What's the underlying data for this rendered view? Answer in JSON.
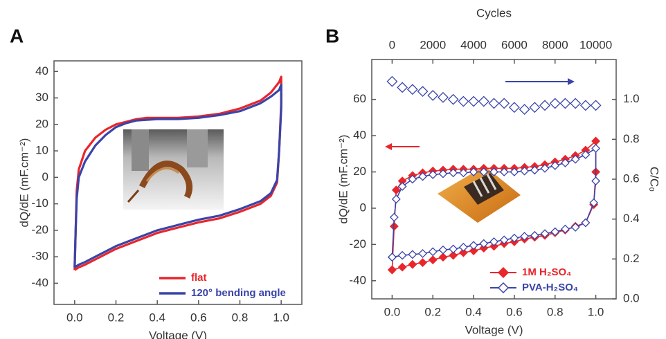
{
  "chart_data": [
    {
      "type": "line",
      "panel": "A",
      "x_label": "Voltage (V)",
      "y_label": "dQ/dE (mF.cm⁻²)",
      "xlim": [
        -0.1,
        1.1
      ],
      "ylim": [
        -48,
        44
      ],
      "xticks": [
        {
          "value": 0,
          "label": "0.0"
        },
        0.2,
        0.4,
        0.6,
        0.8,
        {
          "value": 1,
          "label": "1.0"
        }
      ],
      "yticks": [
        -40,
        -30,
        -20,
        -10,
        0,
        10,
        20,
        30,
        40
      ],
      "legend": "lower right",
      "series": [
        {
          "name": "flat",
          "color": "#e8262b",
          "x": [
            0,
            0.005,
            0.01,
            0.02,
            0.05,
            0.1,
            0.15,
            0.2,
            0.25,
            0.3,
            0.35,
            0.4,
            0.5,
            0.6,
            0.7,
            0.8,
            0.9,
            0.95,
            0.99,
            1.0,
            1.0,
            0.99,
            0.98,
            0.95,
            0.9,
            0.8,
            0.7,
            0.6,
            0.5,
            0.4,
            0.3,
            0.2,
            0.1,
            0.05,
            0.02,
            0
          ],
          "values": [
            -35,
            -20,
            -5,
            3,
            10,
            15,
            18,
            20,
            21,
            22,
            22.5,
            22.5,
            22.5,
            23,
            24,
            26,
            29,
            32,
            36,
            38,
            28,
            10,
            -2,
            -7,
            -10,
            -13,
            -15.5,
            -17,
            -19,
            -21,
            -24,
            -27,
            -31,
            -33,
            -34,
            -35
          ]
        },
        {
          "name": "120° bending angle",
          "color": "#3a44a8",
          "x": [
            0,
            0.005,
            0.01,
            0.02,
            0.05,
            0.1,
            0.15,
            0.2,
            0.25,
            0.3,
            0.4,
            0.5,
            0.6,
            0.7,
            0.8,
            0.9,
            0.95,
            0.99,
            1.0,
            1.0,
            0.99,
            0.98,
            0.95,
            0.9,
            0.8,
            0.7,
            0.6,
            0.5,
            0.4,
            0.3,
            0.2,
            0.1,
            0.05,
            0.02,
            0
          ],
          "values": [
            -34,
            -20,
            -8,
            0,
            6,
            12,
            16,
            19,
            20.5,
            21.5,
            22,
            22,
            22.5,
            23.5,
            25,
            28,
            30.5,
            33,
            35,
            26,
            10,
            -1,
            -6,
            -9,
            -12,
            -14.5,
            -16,
            -18,
            -20,
            -23,
            -26,
            -30,
            -32,
            -33,
            -34
          ]
        }
      ]
    },
    {
      "type": "line",
      "panel": "B",
      "x_label": "Voltage (V)",
      "y_label": "dQ/dE (mF.cm⁻²)",
      "x2_label": "Cycles",
      "y2_label": "C/C₀",
      "xlim": [
        -0.1,
        1.1
      ],
      "ylim": [
        -50,
        82
      ],
      "x2lim": [
        -1000,
        11000
      ],
      "y2lim": [
        0,
        1.2
      ],
      "xticks": [
        {
          "value": 0,
          "label": "0.0"
        },
        0.2,
        0.4,
        0.6,
        0.8,
        {
          "value": 1,
          "label": "1.0"
        }
      ],
      "yticks": [
        -40,
        -20,
        0,
        20,
        40,
        60
      ],
      "x2ticks": [
        0,
        2000,
        4000,
        6000,
        8000,
        10000
      ],
      "y2ticks": [
        {
          "value": 0,
          "label": "0.0"
        },
        0.2,
        0.4,
        0.6,
        0.8,
        {
          "value": 1,
          "label": "1.0"
        }
      ],
      "legend": "lower right",
      "series": [
        {
          "name": "1M H₂SO₄",
          "color": "#e8262b",
          "marker": "filled-diamond",
          "x": [
            0,
            0.01,
            0.02,
            0.05,
            0.1,
            0.15,
            0.2,
            0.25,
            0.3,
            0.35,
            0.4,
            0.45,
            0.5,
            0.55,
            0.6,
            0.65,
            0.7,
            0.75,
            0.8,
            0.85,
            0.9,
            0.95,
            1.0,
            1.0,
            0.99,
            0.95,
            0.9,
            0.85,
            0.8,
            0.75,
            0.7,
            0.65,
            0.6,
            0.55,
            0.5,
            0.45,
            0.4,
            0.35,
            0.3,
            0.25,
            0.2,
            0.15,
            0.1,
            0.05,
            0
          ],
          "values": [
            -34,
            -10,
            10,
            15,
            18,
            19.5,
            20.5,
            21,
            21.5,
            21.5,
            21.5,
            22,
            22,
            22,
            22,
            22.5,
            23,
            24,
            25.5,
            27,
            29,
            32,
            37,
            20,
            2,
            -8,
            -10,
            -12,
            -13.5,
            -15,
            -16,
            -17,
            -18.5,
            -19.5,
            -21,
            -22,
            -23.5,
            -24.5,
            -26,
            -27,
            -28.5,
            -30,
            -31,
            -32.5,
            -34
          ]
        },
        {
          "name": "PVA-H₂SO₄",
          "color": "#3a44a8",
          "marker": "open-diamond",
          "x": [
            0,
            0.01,
            0.02,
            0.05,
            0.1,
            0.15,
            0.2,
            0.25,
            0.3,
            0.35,
            0.4,
            0.45,
            0.5,
            0.55,
            0.6,
            0.65,
            0.7,
            0.75,
            0.8,
            0.85,
            0.9,
            0.95,
            1.0,
            1.0,
            0.99,
            0.95,
            0.9,
            0.85,
            0.8,
            0.75,
            0.7,
            0.65,
            0.6,
            0.55,
            0.5,
            0.45,
            0.4,
            0.35,
            0.3,
            0.25,
            0.2,
            0.15,
            0.1,
            0.05,
            0
          ],
          "values": [
            -27,
            -5,
            5,
            12,
            16,
            17.5,
            18.5,
            19,
            19.5,
            19.5,
            20,
            20,
            20,
            20,
            20,
            20.5,
            21,
            22,
            23.5,
            25,
            27,
            29.5,
            33,
            15,
            3,
            -8,
            -10.5,
            -11.5,
            -13,
            -14,
            -15,
            -15.5,
            -16.5,
            -17.5,
            -18.5,
            -19.5,
            -20.5,
            -21.5,
            -22.5,
            -23,
            -24,
            -25,
            -25.5,
            -26,
            -27
          ]
        },
        {
          "color": "#3a44a8",
          "marker": "open-diamond",
          "axis": "y2",
          "x_axis": "x2",
          "connect": false,
          "x": [
            0,
            500,
            1000,
            1500,
            2000,
            2500,
            3000,
            3500,
            4000,
            4500,
            5000,
            5500,
            6000,
            6500,
            7000,
            7500,
            8000,
            8500,
            9000,
            9500,
            10000
          ],
          "values": [
            1.09,
            1.06,
            1.05,
            1.04,
            1.02,
            1.01,
            1.0,
            0.99,
            0.99,
            0.99,
            0.98,
            0.98,
            0.96,
            0.95,
            0.96,
            0.97,
            0.98,
            0.98,
            0.98,
            0.97,
            0.97
          ]
        }
      ]
    }
  ]
}
